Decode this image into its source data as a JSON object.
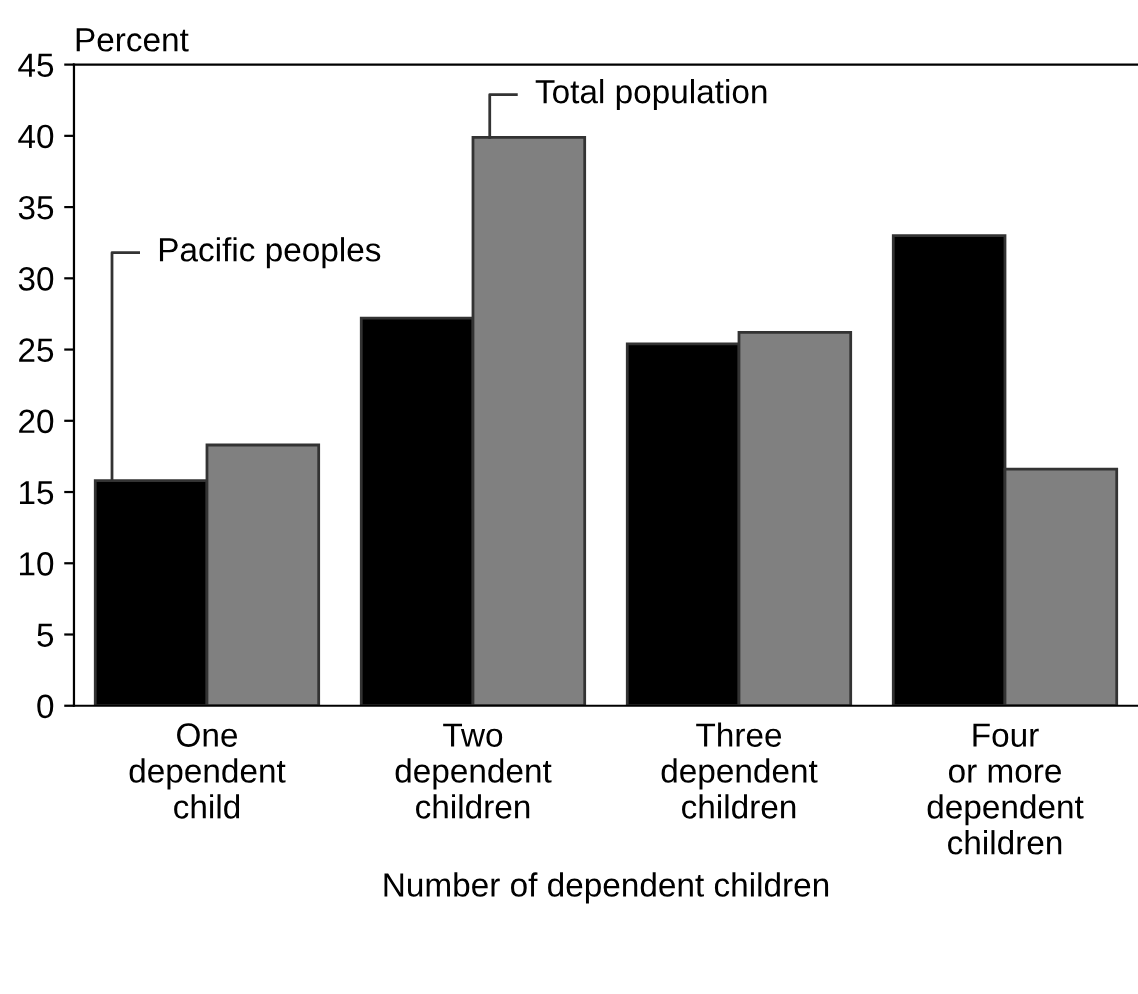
{
  "chart_data": {
    "type": "bar",
    "ylabel": "Percent",
    "xlabel": "Number of dependent children",
    "categories": [
      "One\ndependent\nchild",
      "Two\ndependent\nchildren",
      "Three\ndependent\nchildren",
      "Four\nor more\ndependent\nchildren"
    ],
    "series": [
      {
        "name": "Pacific peoples",
        "color": "#000000",
        "values": [
          15.8,
          27.2,
          25.4,
          33.0
        ]
      },
      {
        "name": "Total population",
        "color": "#808080",
        "values": [
          18.3,
          39.9,
          26.2,
          16.6
        ]
      }
    ],
    "ylim": [
      0,
      45
    ],
    "yticks": [
      0,
      5,
      10,
      15,
      20,
      25,
      30,
      35,
      40,
      45
    ],
    "grid": false,
    "legend": "top left"
  }
}
